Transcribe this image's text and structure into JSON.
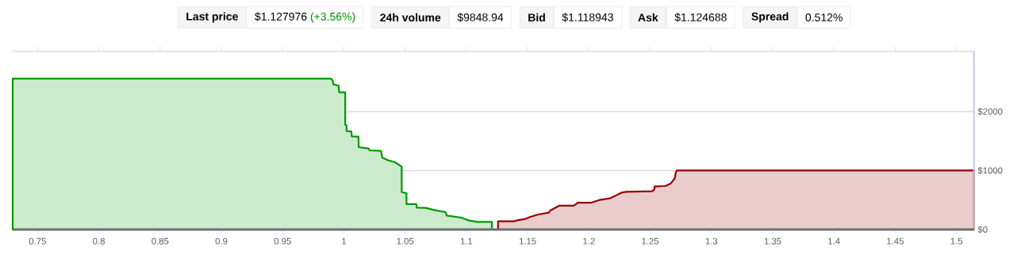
{
  "chart_data": {
    "type": "area",
    "annotations": [
      "Last price",
      "$1.127976",
      "(+3.56%)",
      "24h volume",
      "$9848.94",
      "Bid",
      "$1.118943",
      "Ask",
      "$1.124688",
      "Spread",
      "0.512%"
    ],
    "series": [
      {
        "color": "#009900",
        "x": [
          0.7297,
          0.9894,
          0.9909,
          0.9914,
          0.9957,
          0.9961,
          1.0011,
          1.0011,
          1.0022,
          1.0022,
          1.0061,
          1.0065,
          1.0119,
          1.0121,
          1.0201,
          1.0212,
          1.0303,
          1.0314,
          1.0364,
          1.0418,
          1.0472,
          1.0472,
          1.0511,
          1.0511,
          1.0591,
          1.0595,
          1.0667,
          1.0743,
          1.0829,
          1.084,
          1.0959,
          1.1013,
          1.1089,
          1.1208
        ],
        "values": [
          2559,
          2559,
          2528,
          2461,
          2439,
          2327,
          2327,
          1776,
          1767,
          1669,
          1664,
          1579,
          1575,
          1396,
          1374,
          1342,
          1333,
          1217,
          1172,
          1141,
          1065,
          635,
          613,
          430,
          430,
          371,
          367,
          327,
          295,
          237,
          201,
          157,
          130,
          130
        ]
      },
      {
        "color": "#990000",
        "x": [
          1.1258,
          1.1392,
          1.1414,
          1.1479,
          1.1522,
          1.1587,
          1.1673,
          1.1684,
          1.1756,
          1.1873,
          1.1901,
          1.1907,
          1.202,
          1.2085,
          1.2171,
          1.2204,
          1.2269,
          1.2302,
          1.2518,
          1.2535,
          1.2535,
          1.2626,
          1.2669,
          1.2702,
          1.2708,
          1.2717,
          1.5143
        ],
        "values": [
          139,
          139,
          157,
          179,
          215,
          255,
          286,
          322,
          403,
          403,
          438,
          456,
          456,
          501,
          528,
          559,
          626,
          640,
          649,
          685,
          729,
          738,
          783,
          872,
          962,
          1002,
          1002
        ]
      }
    ],
    "xlim": [
      0.7297,
      1.5143
    ],
    "ylim": [
      0,
      3020
    ],
    "xticks": [
      0.75,
      0.8,
      0.85,
      0.9,
      0.95,
      1,
      1.05,
      1.1,
      1.15,
      1.2,
      1.25,
      1.3,
      1.35,
      1.4,
      1.45,
      1.5
    ],
    "yticks": [
      {
        "value": 0,
        "label": "$0"
      },
      {
        "value": 1000,
        "label": "$1000"
      },
      {
        "value": 2000,
        "label": "$2000"
      }
    ],
    "grid": "y"
  }
}
